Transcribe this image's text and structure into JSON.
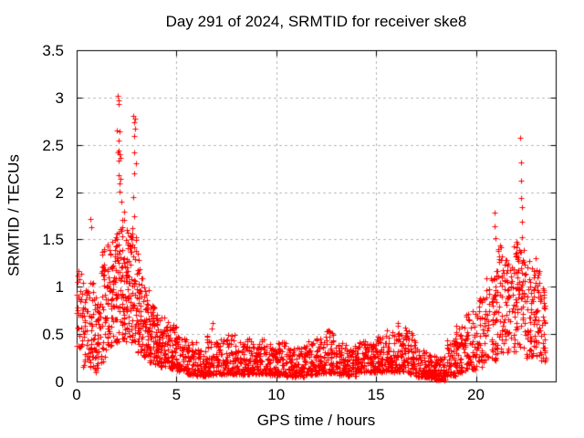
{
  "chart_data": {
    "type": "scatter",
    "title": "Day 291 of 2024, SRMTID for receiver ske8",
    "xlabel": "GPS time / hours",
    "ylabel": "SRMTID / TECUs",
    "xlim": [
      0,
      24
    ],
    "ylim": [
      0,
      3.5
    ],
    "xticks": [
      {
        "v": 0,
        "label": "0"
      },
      {
        "v": 5,
        "label": "5"
      },
      {
        "v": 10,
        "label": "10"
      },
      {
        "v": 15,
        "label": "15"
      },
      {
        "v": 20,
        "label": "20"
      }
    ],
    "yticks": [
      {
        "v": 0,
        "label": "0"
      },
      {
        "v": 0.5,
        "label": "0.5"
      },
      {
        "v": 1,
        "label": "1"
      },
      {
        "v": 1.5,
        "label": "1.5"
      },
      {
        "v": 2,
        "label": "2"
      },
      {
        "v": 2.5,
        "label": "2.5"
      },
      {
        "v": 3,
        "label": "3"
      },
      {
        "v": 3.5,
        "label": "3.5"
      }
    ],
    "grid": {
      "on": true,
      "color": "#999999",
      "dash": [
        2,
        4
      ]
    },
    "legend": null,
    "marker": {
      "shape": "plus",
      "size": 7,
      "color": "#ff0000"
    },
    "border_color": "#000000",
    "background_color": "#ffffff",
    "seed": 42,
    "density_bins": [
      [
        0.0,
        0.3,
        30,
        0.35,
        1.3,
        0.75
      ],
      [
        0.3,
        0.6,
        35,
        0.15,
        1.05,
        0.55
      ],
      [
        0.6,
        0.9,
        35,
        0.15,
        1.05,
        0.5
      ],
      [
        0.9,
        1.2,
        40,
        0.1,
        0.95,
        0.45
      ],
      [
        1.2,
        1.5,
        40,
        0.2,
        1.45,
        0.6
      ],
      [
        1.5,
        1.8,
        45,
        0.35,
        1.45,
        0.85
      ],
      [
        1.8,
        2.1,
        50,
        0.4,
        1.6,
        0.95
      ],
      [
        2.1,
        2.4,
        50,
        0.45,
        1.9,
        1.05
      ],
      [
        2.4,
        2.7,
        50,
        0.4,
        1.6,
        0.95
      ],
      [
        2.7,
        3.0,
        50,
        0.4,
        1.6,
        0.9
      ],
      [
        3.0,
        3.3,
        45,
        0.3,
        1.2,
        0.65
      ],
      [
        3.3,
        3.6,
        45,
        0.25,
        1.0,
        0.55
      ],
      [
        3.6,
        3.9,
        45,
        0.2,
        0.8,
        0.45
      ],
      [
        3.9,
        4.2,
        45,
        0.18,
        0.72,
        0.4
      ],
      [
        4.2,
        4.6,
        50,
        0.15,
        0.68,
        0.35
      ],
      [
        4.6,
        5.0,
        50,
        0.13,
        0.6,
        0.3
      ],
      [
        5.0,
        5.5,
        55,
        0.1,
        0.48,
        0.25
      ],
      [
        5.5,
        6.0,
        55,
        0.07,
        0.42,
        0.2
      ],
      [
        6.0,
        6.5,
        55,
        0.06,
        0.35,
        0.15
      ],
      [
        6.5,
        7.0,
        55,
        0.07,
        0.5,
        0.17
      ],
      [
        7.0,
        7.5,
        55,
        0.08,
        0.45,
        0.18
      ],
      [
        7.5,
        8.0,
        55,
        0.08,
        0.5,
        0.2
      ],
      [
        8.0,
        8.5,
        55,
        0.07,
        0.42,
        0.17
      ],
      [
        8.5,
        9.0,
        55,
        0.08,
        0.46,
        0.18
      ],
      [
        9.0,
        9.5,
        55,
        0.08,
        0.45,
        0.2
      ],
      [
        9.5,
        10.0,
        55,
        0.07,
        0.4,
        0.17
      ],
      [
        10.0,
        10.5,
        55,
        0.07,
        0.42,
        0.17
      ],
      [
        10.5,
        11.0,
        55,
        0.05,
        0.36,
        0.14
      ],
      [
        11.0,
        11.5,
        55,
        0.05,
        0.38,
        0.15
      ],
      [
        11.5,
        12.0,
        55,
        0.07,
        0.45,
        0.17
      ],
      [
        12.0,
        12.5,
        55,
        0.08,
        0.52,
        0.2
      ],
      [
        12.5,
        13.0,
        55,
        0.09,
        0.56,
        0.22
      ],
      [
        13.0,
        13.5,
        55,
        0.07,
        0.42,
        0.17
      ],
      [
        13.5,
        14.0,
        55,
        0.06,
        0.38,
        0.16
      ],
      [
        14.0,
        14.5,
        55,
        0.09,
        0.45,
        0.21
      ],
      [
        14.5,
        15.0,
        55,
        0.09,
        0.4,
        0.2
      ],
      [
        15.0,
        15.5,
        55,
        0.09,
        0.48,
        0.2
      ],
      [
        15.5,
        16.0,
        55,
        0.1,
        0.55,
        0.25
      ],
      [
        16.0,
        16.5,
        55,
        0.1,
        0.6,
        0.3
      ],
      [
        16.5,
        17.0,
        55,
        0.08,
        0.55,
        0.24
      ],
      [
        17.0,
        17.5,
        55,
        0.05,
        0.35,
        0.14
      ],
      [
        17.5,
        18.0,
        55,
        0.03,
        0.28,
        0.11
      ],
      [
        18.0,
        18.5,
        55,
        0.02,
        0.3,
        0.1
      ],
      [
        18.5,
        19.0,
        55,
        0.06,
        0.45,
        0.18
      ],
      [
        19.0,
        19.5,
        50,
        0.1,
        0.6,
        0.28
      ],
      [
        19.5,
        20.0,
        50,
        0.12,
        0.75,
        0.35
      ],
      [
        20.0,
        20.5,
        50,
        0.15,
        0.9,
        0.45
      ],
      [
        20.5,
        21.0,
        50,
        0.2,
        1.1,
        0.6
      ],
      [
        21.0,
        21.4,
        45,
        0.3,
        1.45,
        0.8
      ],
      [
        21.4,
        21.8,
        45,
        0.3,
        1.3,
        0.85
      ],
      [
        21.8,
        22.1,
        40,
        0.3,
        1.55,
        0.95
      ],
      [
        22.1,
        22.5,
        45,
        0.35,
        1.4,
        0.95
      ],
      [
        22.5,
        22.9,
        45,
        0.25,
        1.3,
        0.7
      ],
      [
        22.9,
        23.2,
        40,
        0.25,
        1.2,
        0.6
      ],
      [
        23.2,
        23.5,
        35,
        0.2,
        1.0,
        0.5
      ]
    ],
    "outliers": [
      [
        0.68,
        1.72
      ],
      [
        0.71,
        1.63
      ],
      [
        2.06,
        3.02
      ],
      [
        2.1,
        2.97
      ],
      [
        2.12,
        2.93
      ],
      [
        2.01,
        2.65
      ],
      [
        2.14,
        2.64
      ],
      [
        2.1,
        2.55
      ],
      [
        2.12,
        2.44
      ],
      [
        2.06,
        2.42
      ],
      [
        2.16,
        2.4
      ],
      [
        2.18,
        2.36
      ],
      [
        2.09,
        2.33
      ],
      [
        2.11,
        2.18
      ],
      [
        2.2,
        2.14
      ],
      [
        2.17,
        2.09
      ],
      [
        2.13,
        2.01
      ],
      [
        2.24,
        1.9
      ],
      [
        2.85,
        2.81
      ],
      [
        2.93,
        2.78
      ],
      [
        2.87,
        2.74
      ],
      [
        2.92,
        2.67
      ],
      [
        2.89,
        2.59
      ],
      [
        2.88,
        2.42
      ],
      [
        2.97,
        2.3
      ],
      [
        2.9,
        2.2
      ],
      [
        2.84,
        1.95
      ],
      [
        2.88,
        1.75
      ],
      [
        2.8,
        1.62
      ],
      [
        2.78,
        1.52
      ],
      [
        3.05,
        1.35
      ],
      [
        3.1,
        1.28
      ],
      [
        6.8,
        0.62
      ],
      [
        6.77,
        0.56
      ],
      [
        16.1,
        0.62
      ],
      [
        18.2,
        0.02
      ],
      [
        20.93,
        1.78
      ],
      [
        20.95,
        1.64
      ],
      [
        20.97,
        1.51
      ],
      [
        21.2,
        1.44
      ],
      [
        21.55,
        1.28
      ],
      [
        22.22,
        2.57
      ],
      [
        22.24,
        2.31
      ],
      [
        22.26,
        2.12
      ],
      [
        22.28,
        1.94
      ],
      [
        22.3,
        1.84
      ],
      [
        22.31,
        1.69
      ],
      [
        22.33,
        1.52
      ],
      [
        23.0,
        1.3
      ],
      [
        23.04,
        1.18
      ]
    ]
  }
}
